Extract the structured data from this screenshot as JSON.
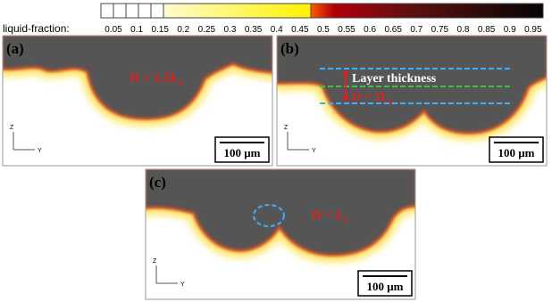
{
  "colorbar": {
    "label": "liquid-fraction:",
    "ticks": [
      0.05,
      0.1,
      0.15,
      0.2,
      0.25,
      0.3,
      0.35,
      0.4,
      0.45,
      0.5,
      0.55,
      0.6,
      0.65,
      0.7,
      0.75,
      0.8,
      0.85,
      0.9,
      0.95
    ]
  },
  "panels": [
    {
      "label": "(a)",
      "annotations": [
        {
          "text": "D > 1.5L",
          "subscript": "r"
        }
      ],
      "scale_bar": "100 μm",
      "axes": [
        "Z",
        "Y"
      ]
    },
    {
      "label": "(b)",
      "annotations": [
        {
          "text": "Layer thickness"
        },
        {
          "text": "D = 2L",
          "subscript": "r"
        }
      ],
      "scale_bar": "100 μm",
      "axes": [
        "Z",
        "Y"
      ]
    },
    {
      "label": "(c)",
      "annotations": [
        {
          "text": "D < L",
          "subscript": "r"
        }
      ],
      "scale_bar": "100 μm",
      "axes": [
        "Z",
        "Y"
      ]
    }
  ]
}
